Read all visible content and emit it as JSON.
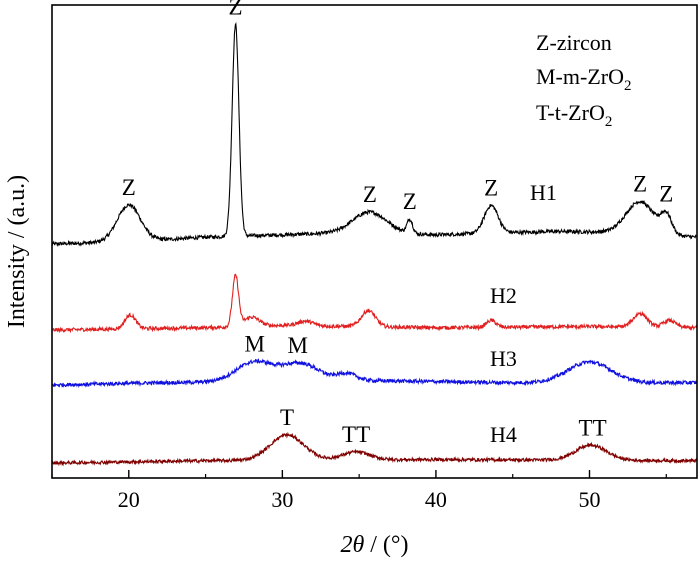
{
  "chart_data": {
    "type": "line",
    "title": "",
    "xlabel": "2θ / (°)",
    "xlabel_parts": {
      "theta": "2θ",
      "unit": " / (°)"
    },
    "ylabel": "Intensity / (a.u.)",
    "xlim": [
      15,
      57
    ],
    "xticks": [
      20,
      30,
      40,
      50
    ],
    "xtick_labels": [
      "20",
      "30",
      "40",
      "50"
    ],
    "yticks_shown": false,
    "legend": {
      "placement": "top-right",
      "entries": [
        {
          "text": "Z-zircon"
        },
        {
          "text": "M-m-ZrO2",
          "prefix": "M-m-ZrO",
          "sub": "2"
        },
        {
          "text": "T-t-ZrO2",
          "prefix": "T-t-ZrO",
          "sub": "2"
        }
      ]
    },
    "series": [
      {
        "name": "H1",
        "color": "#000000",
        "baseline": 0,
        "noise": 0.008,
        "background": [
          [
            15,
            0.0
          ],
          [
            20,
            0.01
          ],
          [
            25,
            0.03
          ],
          [
            30,
            0.04
          ],
          [
            35,
            0.05
          ],
          [
            40,
            0.04
          ],
          [
            45,
            0.05
          ],
          [
            48,
            0.055
          ],
          [
            52,
            0.05
          ],
          [
            57,
            0.03
          ]
        ],
        "peaks": [
          {
            "x": 20.0,
            "h": 0.16,
            "w": 0.75
          },
          {
            "x": 26.95,
            "h": 0.92,
            "w": 0.22
          },
          {
            "x": 35.7,
            "h": 0.09,
            "w": 1.1
          },
          {
            "x": 38.3,
            "h": 0.06,
            "w": 0.18
          },
          {
            "x": 43.6,
            "h": 0.12,
            "w": 0.45
          },
          {
            "x": 53.3,
            "h": 0.14,
            "w": 0.9
          },
          {
            "x": 55.0,
            "h": 0.08,
            "w": 0.35
          }
        ]
      },
      {
        "name": "H2",
        "color": "#e02020",
        "baseline": 0,
        "noise": 0.008,
        "background": [
          [
            15,
            0.0
          ],
          [
            25,
            0.01
          ],
          [
            30,
            0.02
          ],
          [
            40,
            0.01
          ],
          [
            50,
            0.015
          ],
          [
            57,
            0.01
          ]
        ],
        "peaks": [
          {
            "x": 20.1,
            "h": 0.06,
            "w": 0.35
          },
          {
            "x": 26.95,
            "h": 0.22,
            "w": 0.2
          },
          {
            "x": 28.0,
            "h": 0.04,
            "w": 0.5
          },
          {
            "x": 31.5,
            "h": 0.02,
            "w": 0.5
          },
          {
            "x": 35.6,
            "h": 0.07,
            "w": 0.45
          },
          {
            "x": 43.6,
            "h": 0.03,
            "w": 0.3
          },
          {
            "x": 53.3,
            "h": 0.06,
            "w": 0.45
          },
          {
            "x": 55.2,
            "h": 0.03,
            "w": 0.4
          }
        ]
      },
      {
        "name": "H3",
        "color": "#1010e0",
        "baseline": 0,
        "noise": 0.008,
        "background": [
          [
            15,
            0.0
          ],
          [
            22,
            0.01
          ],
          [
            35,
            0.02
          ],
          [
            45,
            0.01
          ],
          [
            57,
            0.01
          ]
        ],
        "peaks": [
          {
            "x": 28.2,
            "h": 0.085,
            "w": 1.2
          },
          {
            "x": 31.2,
            "h": 0.075,
            "w": 1.2
          },
          {
            "x": 34.2,
            "h": 0.03,
            "w": 0.6
          },
          {
            "x": 50.0,
            "h": 0.09,
            "w": 1.4
          }
        ]
      },
      {
        "name": "H4",
        "color": "#800000",
        "baseline": 0,
        "noise": 0.007,
        "background": [
          [
            15,
            0.0
          ],
          [
            25,
            0.01
          ],
          [
            40,
            0.015
          ],
          [
            57,
            0.01
          ]
        ],
        "peaks": [
          {
            "x": 30.3,
            "h": 0.11,
            "w": 1.1
          },
          {
            "x": 34.8,
            "h": 0.035,
            "w": 0.9
          },
          {
            "x": 50.1,
            "h": 0.065,
            "w": 1.0
          }
        ]
      }
    ],
    "peak_labels": [
      {
        "text": "Z",
        "series": "H1",
        "x": 20.0
      },
      {
        "text": "Z",
        "series": "H1",
        "x": 26.95
      },
      {
        "text": "Z",
        "series": "H1",
        "x": 35.7
      },
      {
        "text": "Z",
        "series": "H1",
        "x": 38.3
      },
      {
        "text": "Z",
        "series": "H1",
        "x": 43.6
      },
      {
        "text": "Z",
        "series": "H1",
        "x": 53.3
      },
      {
        "text": "Z",
        "series": "H1",
        "x": 55.0
      },
      {
        "text": "M",
        "series": "H3",
        "x": 28.2
      },
      {
        "text": "M",
        "series": "H3",
        "x": 31.0
      },
      {
        "text": "T",
        "series": "H4",
        "x": 30.3
      },
      {
        "text": "TT",
        "series": "H4",
        "x": 34.8
      },
      {
        "text": "TT",
        "series": "H4",
        "x": 50.2
      }
    ]
  }
}
